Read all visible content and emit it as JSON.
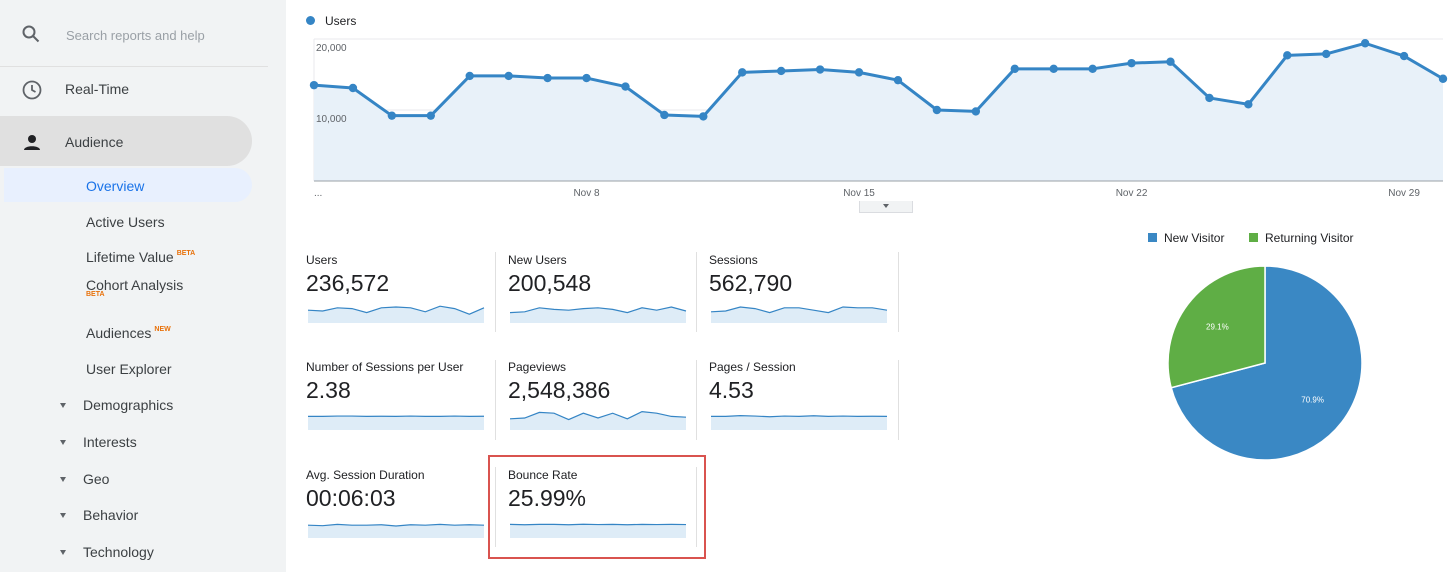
{
  "sidebar": {
    "search_placeholder": "Search reports and help",
    "realtime_label": "Real-Time",
    "audience_label": "Audience",
    "overview_label": "Overview",
    "active_users_label": "Active Users",
    "lifetime_value_label": "Lifetime Value",
    "lifetime_value_tag": "BETA",
    "cohort_label": "Cohort Analysis",
    "cohort_tag": "BETA",
    "audiences_label": "Audiences",
    "audiences_tag": "NEW",
    "user_explorer_label": "User Explorer",
    "demographics_label": "Demographics",
    "interests_label": "Interests",
    "geo_label": "Geo",
    "behavior_label": "Behavior",
    "technology_label": "Technology"
  },
  "main_chart": {
    "legend": "Users",
    "y_ticks": [
      "20,000",
      "10,000"
    ],
    "x_ticks": [
      "...",
      "Nov 8",
      "Nov 15",
      "Nov 22",
      "Nov 29"
    ]
  },
  "chart_data": {
    "type": "area",
    "series": [
      {
        "name": "Users",
        "values": [
          13500,
          13100,
          9200,
          9200,
          14800,
          14800,
          14500,
          14500,
          13300,
          9300,
          9100,
          15300,
          15500,
          15700,
          15300,
          14200,
          10000,
          9800,
          15800,
          15800,
          15800,
          16600,
          16800,
          11700,
          10800,
          17700,
          17900,
          19400,
          17600,
          14400
        ]
      }
    ],
    "y_ticks": [
      10000,
      20000
    ],
    "x_labels": [
      "...",
      "Nov 8",
      "Nov 15",
      "Nov 22",
      "Nov 29"
    ],
    "ylim": [
      0,
      20000
    ],
    "grid": true,
    "color": "#3585c5"
  },
  "metrics": [
    {
      "title": "Users",
      "value": "236,572"
    },
    {
      "title": "New Users",
      "value": "200,548"
    },
    {
      "title": "Sessions",
      "value": "562,790"
    },
    {
      "title": "Number of Sessions per User",
      "value": "2.38"
    },
    {
      "title": "Pageviews",
      "value": "2,548,386"
    },
    {
      "title": "Pages / Session",
      "value": "4.53"
    },
    {
      "title": "Avg. Session Duration",
      "value": "00:06:03"
    },
    {
      "title": "Bounce Rate",
      "value": "25.99%"
    }
  ],
  "pie": {
    "type": "pie",
    "legend": [
      "New Visitor",
      "Returning Visitor"
    ],
    "slices": [
      {
        "name": "New Visitor",
        "value": 70.9,
        "label": "70.9%",
        "color": "#3a88c4"
      },
      {
        "name": "Returning Visitor",
        "value": 29.1,
        "label": "29.1%",
        "color": "#5fae45"
      }
    ]
  }
}
